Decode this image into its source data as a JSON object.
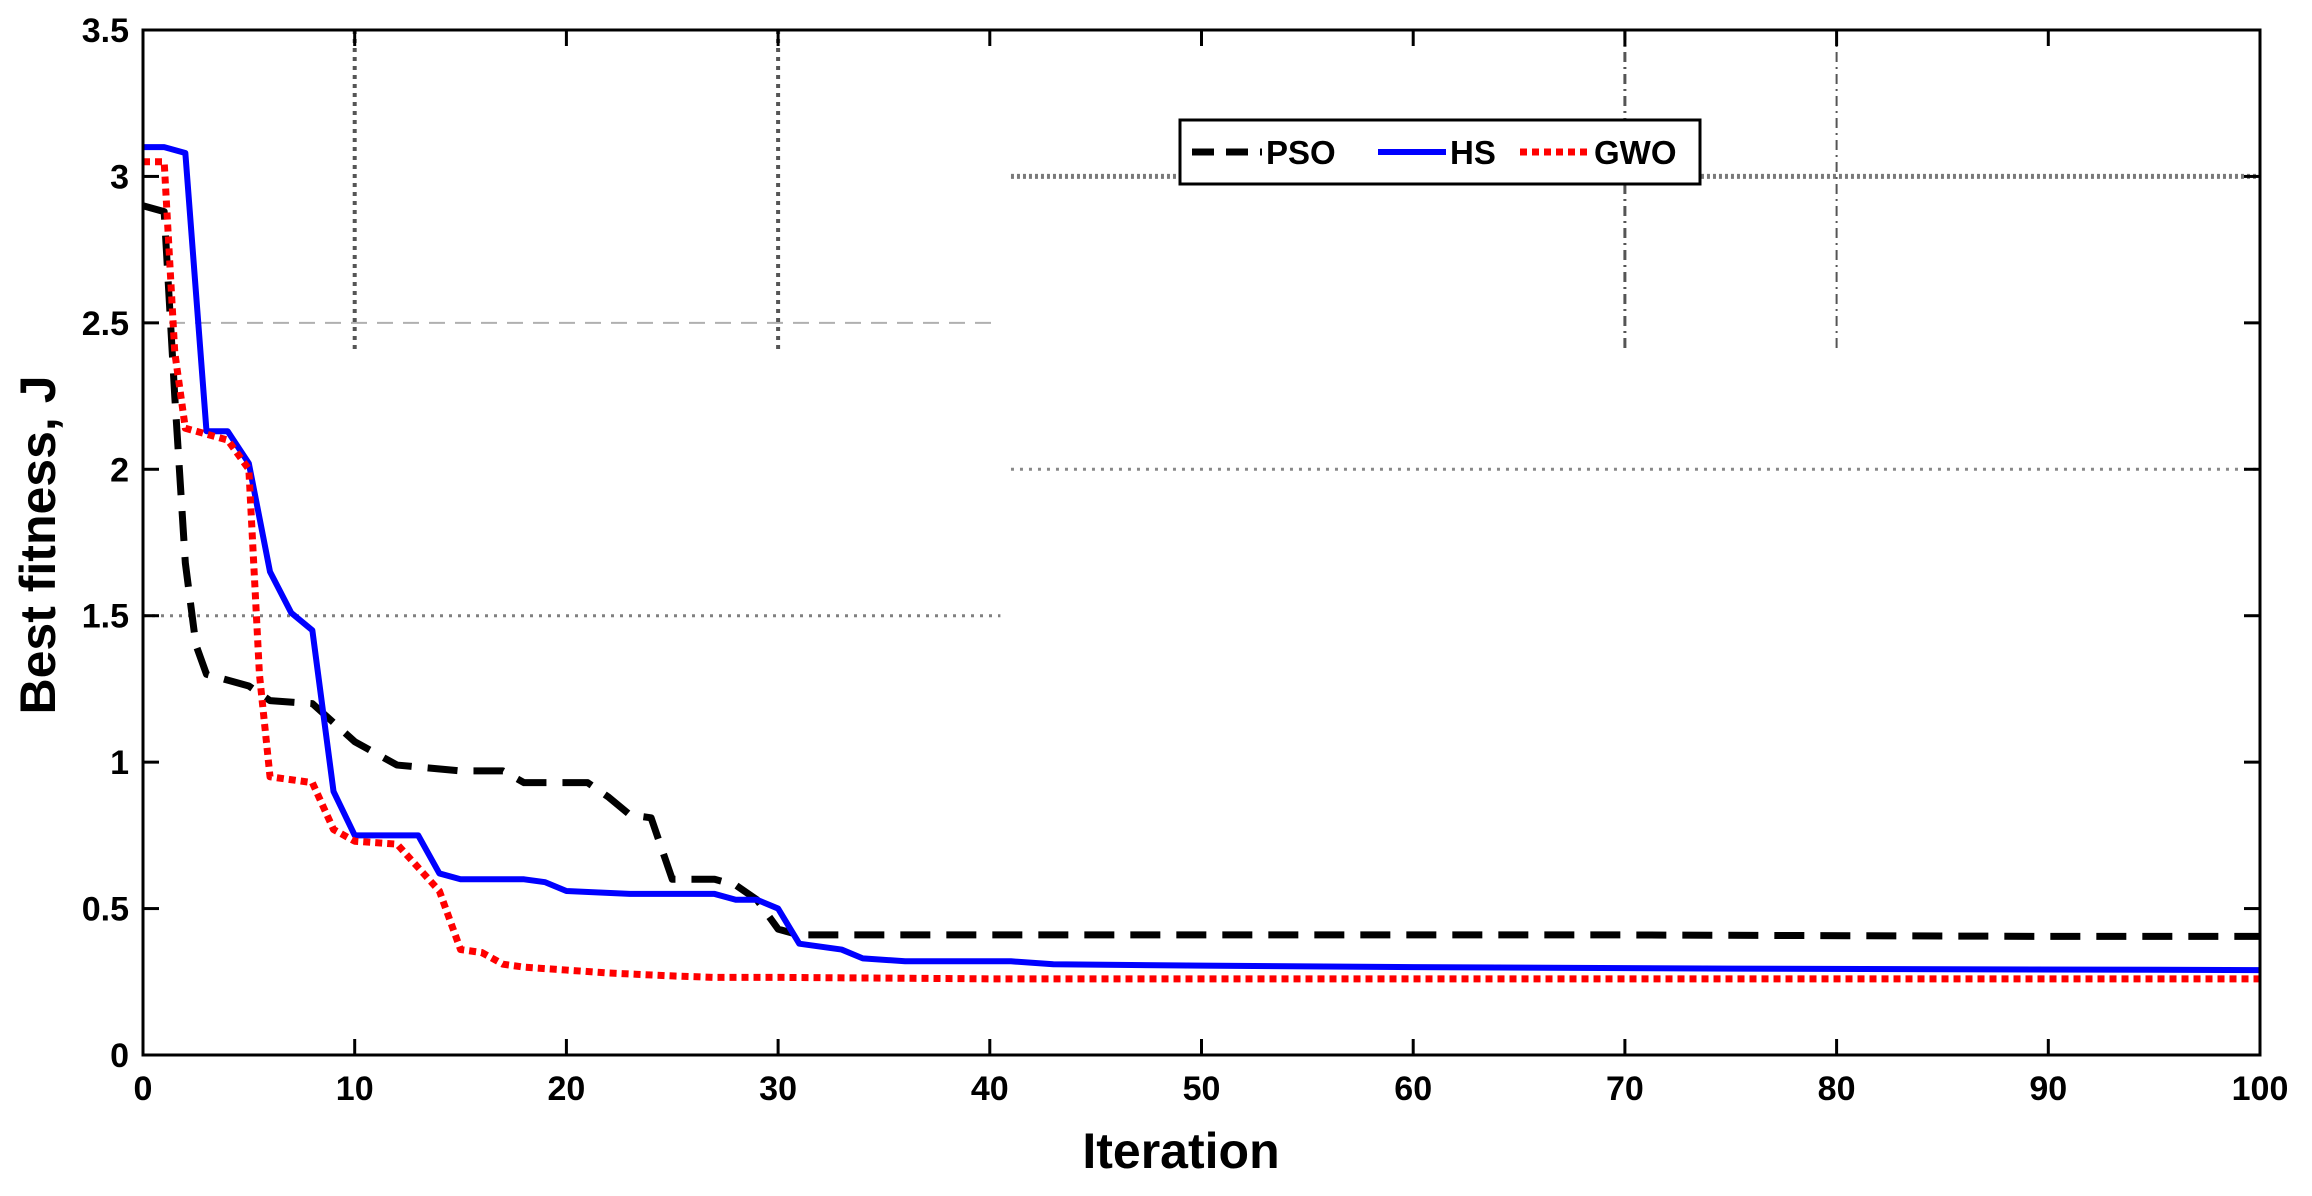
{
  "chart_data": {
    "type": "line",
    "title": "",
    "xlabel": "Iteration",
    "ylabel": "Best fitness, J",
    "xlim": [
      0,
      100
    ],
    "ylim": [
      0,
      3.5
    ],
    "xticks": [
      0,
      10,
      20,
      30,
      40,
      50,
      60,
      70,
      80,
      90,
      100
    ],
    "yticks": [
      0,
      0.5,
      1,
      1.5,
      2,
      2.5,
      3,
      3.5
    ],
    "xtick_labels": [
      "0",
      "10",
      "20",
      "30",
      "40",
      "50",
      "60",
      "70",
      "80",
      "90",
      "100"
    ],
    "ytick_labels": [
      "0",
      "0.5",
      "1",
      "1.5",
      "2",
      "2.5",
      "3",
      "3.5"
    ],
    "grid": "partial dotted/dashed",
    "legend_position": "top",
    "series": [
      {
        "name": "PSO",
        "color": "#000000",
        "style": "dashed",
        "x": [
          0,
          1,
          1.5,
          2,
          2.5,
          3,
          4,
          5,
          6,
          8,
          10,
          12,
          15,
          17,
          18,
          21,
          22,
          23,
          24,
          25,
          26,
          27,
          28,
          29,
          30,
          31,
          50,
          70,
          90,
          100
        ],
        "y": [
          2.9,
          2.88,
          2.25,
          1.68,
          1.4,
          1.3,
          1.28,
          1.26,
          1.21,
          1.2,
          1.07,
          0.99,
          0.97,
          0.97,
          0.93,
          0.93,
          0.88,
          0.82,
          0.81,
          0.6,
          0.6,
          0.6,
          0.58,
          0.53,
          0.43,
          0.41,
          0.41,
          0.41,
          0.405,
          0.405
        ]
      },
      {
        "name": "HS",
        "color": "#0000ff",
        "style": "solid",
        "x": [
          0,
          1,
          2,
          3,
          4,
          5,
          6,
          7,
          8,
          9,
          10,
          13,
          14,
          15,
          18,
          19,
          20,
          23,
          27,
          28,
          29,
          30,
          31,
          33,
          34,
          36,
          41,
          43,
          50,
          60,
          75,
          100
        ],
        "y": [
          3.1,
          3.1,
          3.08,
          2.13,
          2.13,
          2.02,
          1.65,
          1.51,
          1.45,
          0.9,
          0.75,
          0.75,
          0.62,
          0.6,
          0.6,
          0.59,
          0.56,
          0.55,
          0.55,
          0.53,
          0.53,
          0.5,
          0.38,
          0.36,
          0.33,
          0.32,
          0.32,
          0.31,
          0.305,
          0.3,
          0.295,
          0.29
        ]
      },
      {
        "name": "GWO",
        "color": "#ff0000",
        "style": "dotted",
        "x": [
          0,
          1,
          1.5,
          2,
          4,
          5,
          5.5,
          6,
          8,
          9,
          10,
          12,
          14,
          15,
          16,
          17,
          18,
          20,
          22,
          25,
          27,
          30,
          40,
          100
        ],
        "y": [
          3.05,
          3.05,
          2.4,
          2.14,
          2.1,
          2.0,
          1.3,
          0.95,
          0.93,
          0.77,
          0.73,
          0.72,
          0.56,
          0.36,
          0.35,
          0.31,
          0.3,
          0.29,
          0.28,
          0.27,
          0.265,
          0.265,
          0.26,
          0.26
        ]
      }
    ]
  }
}
